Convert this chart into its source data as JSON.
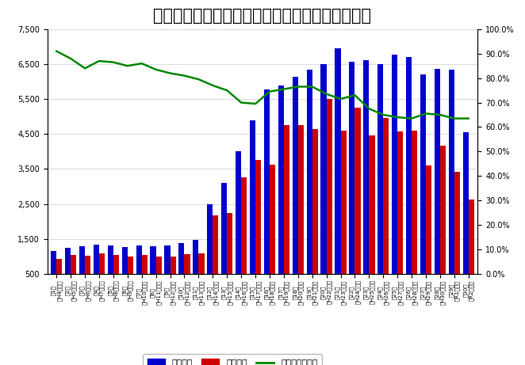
{
  "title": "柔道整復師国家試験受験者数と合格率３０回まで",
  "categories": [
    "第1回\n（H4年度）",
    "第2回\n（H5年度）",
    "第3回\n（H6年度）",
    "第4回\n（H7年度）",
    "第5回\n（H8年度）",
    "第6回\n（H9年度）",
    "第7回\n（H10年度）",
    "第8回\n（H11年度）",
    "第9回\n（H12年度）",
    "第10回\n（H12年度）",
    "第11回\n（H13年度）",
    "第12回\n（H14年度）",
    "第13回\n（H15年度）",
    "第14回\n（H16年度）",
    "第15回\n（H17年度）",
    "第16回\n（H18年度）",
    "第17回\n（H19年度）",
    "第18回\n（H20年度）",
    "第19回\n（H21年度）",
    "第20回\n（H22年度）",
    "第21回\n（H23年度）",
    "第22回\n（H24年度）",
    "第23回\n（H25年度）",
    "第24回\n（H26年度）",
    "第25回\n（H27年度）",
    "第26回\n（H28年度）",
    "第27回\n（H29年度）",
    "第28回\n（H30年度）",
    "第29回\n（R1年度）",
    "第30回\n（R2年度）"
  ],
  "applicants": [
    1150,
    1250,
    1280,
    1330,
    1310,
    1260,
    1320,
    1280,
    1310,
    1380,
    1460,
    2480,
    3100,
    4000,
    4880,
    5770,
    5880,
    6130,
    6350,
    6510,
    6960,
    6570,
    6610,
    6510,
    6770,
    6700,
    6210,
    6360,
    6350,
    4560
  ],
  "passers": [
    920,
    1030,
    1020,
    1080,
    1040,
    990,
    1040,
    990,
    990,
    1050,
    1080,
    2180,
    2230,
    3250,
    3750,
    3620,
    4760,
    4750,
    4640,
    5510,
    4600,
    5260,
    4470,
    4950,
    4570,
    4590,
    3590,
    4170,
    3410,
    2620
  ],
  "pass_rate": [
    91.0,
    88.0,
    84.0,
    87.0,
    86.5,
    85.0,
    86.0,
    83.5,
    82.0,
    81.0,
    79.5,
    77.0,
    75.0,
    70.0,
    69.5,
    74.5,
    75.5,
    76.5,
    76.5,
    73.5,
    71.5,
    73.0,
    67.5,
    65.0,
    64.0,
    63.5,
    65.5,
    65.0,
    63.5,
    63.5
  ],
  "bar_color_applicants": "#0000cc",
  "bar_color_passers": "#cc0000",
  "line_color": "#008800",
  "ylim_left": [
    500,
    7500
  ],
  "ylim_right": [
    0.0,
    100.0
  ],
  "yticks_left": [
    500,
    1500,
    2500,
    3500,
    4500,
    5500,
    6500,
    7500
  ],
  "yticks_right": [
    0.0,
    10.0,
    20.0,
    30.0,
    40.0,
    50.0,
    60.0,
    70.0,
    80.0,
    90.0,
    100.0
  ],
  "legend_labels": [
    "受験者数",
    "合格者数",
    "合格率トータル"
  ],
  "background_color": "#ffffff",
  "title_fontsize": 15,
  "tick_fontsize": 7,
  "xtick_fontsize": 5
}
